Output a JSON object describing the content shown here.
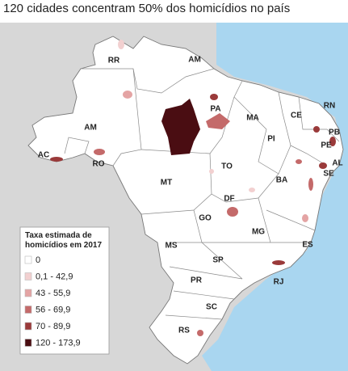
{
  "title": "120 cidades concentram 50% dos homicídios no país",
  "states": [
    "RR",
    "AM",
    "AM",
    "PA",
    "MA",
    "CE",
    "RN",
    "PB",
    "PE",
    "AL",
    "SE",
    "PI",
    "AC",
    "RO",
    "MT",
    "TO",
    "BA",
    "DF",
    "GO",
    "MG",
    "ES",
    "MS",
    "SP",
    "RJ",
    "PR",
    "SC",
    "RS"
  ],
  "legend": {
    "title": [
      "Taxa estimada de",
      "homicídios em 2017"
    ],
    "items": [
      {
        "label": "0",
        "color": "#ffffff"
      },
      {
        "label": "0,1 - 42,9",
        "color": "#f2d0d0"
      },
      {
        "label": "43 - 55,9",
        "color": "#e4a4a4"
      },
      {
        "label": "56 - 69,9",
        "color": "#c46a6a"
      },
      {
        "label": "70 - 89,9",
        "color": "#9a3a3a"
      },
      {
        "label": "120 - 173,9",
        "color": "#4a0d12"
      }
    ]
  }
}
